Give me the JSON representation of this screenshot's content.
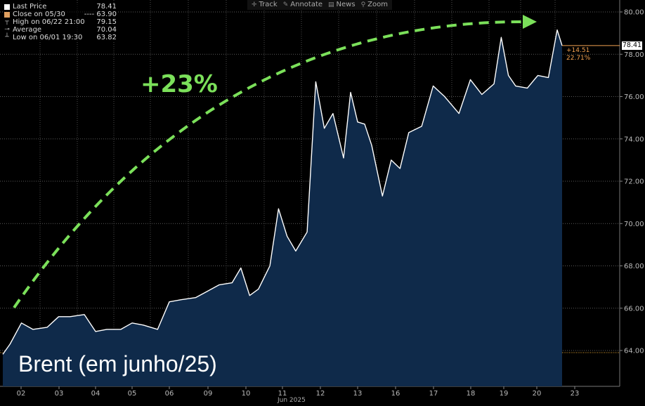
{
  "toolbar": {
    "items": [
      {
        "icon": "crosshair-icon",
        "label": "Track"
      },
      {
        "icon": "pencil-icon",
        "label": "Annotate"
      },
      {
        "icon": "news-icon",
        "label": "News"
      },
      {
        "icon": "zoom-icon",
        "label": "Zoom"
      }
    ]
  },
  "legend": {
    "rows": [
      {
        "label": "Last Price",
        "value": "78.41"
      },
      {
        "label": "Close on 05/30",
        "value": "---- 63.90"
      },
      {
        "label": "High on 06/22 21:00",
        "value": "79.15"
      },
      {
        "label": "Average",
        "value": "70.04"
      },
      {
        "label": "Low on 06/01 19:30",
        "value": "63.82"
      }
    ]
  },
  "annotations": {
    "percent_label": "+23%",
    "chart_title": "Brent (em junho/25)",
    "last_price_tag": "78.41",
    "change_abs": "+14.51",
    "change_pct": "22.71%"
  },
  "colors": {
    "background": "#000000",
    "line": "#ffffff",
    "area_fill": "#0f2a4a",
    "arrow": "#7be05a",
    "close_line": "#e0a030",
    "last_price_swatch": "#ffffff",
    "close_swatch": "#e0a060"
  },
  "chart_data": {
    "type": "area",
    "title": "Brent (em junho/25)",
    "xlabel": "Jun 2025",
    "ylabel": "",
    "x_tick_labels": [
      "02",
      "03",
      "04",
      "05",
      "06",
      "09",
      "10",
      "11",
      "12",
      "13",
      "16",
      "17",
      "18",
      "19",
      "20",
      "23"
    ],
    "y_tick_labels": [
      "64.00",
      "66.00",
      "68.00",
      "70.00",
      "72.00",
      "74.00",
      "76.00",
      "78.00",
      "80.00"
    ],
    "ylim": [
      63,
      80.3
    ],
    "close_reference": 63.9,
    "grid": true,
    "series": [
      {
        "name": "Last Price",
        "x": [
          "06/01 19:30",
          "02",
          "02",
          "02",
          "03",
          "03",
          "03",
          "04",
          "04",
          "04",
          "05",
          "05",
          "05",
          "06",
          "06",
          "06",
          "09",
          "09",
          "09",
          "10",
          "10",
          "10",
          "10",
          "11",
          "11",
          "11",
          "11",
          "12",
          "12",
          "12",
          "12",
          "13",
          "13",
          "13",
          "13",
          "13",
          "16",
          "16",
          "16",
          "16",
          "17",
          "17",
          "17",
          "18",
          "18",
          "18",
          "19",
          "19",
          "19",
          "19",
          "20",
          "20",
          "20",
          "06/22 21:00",
          "23"
        ],
        "values": [
          63.82,
          64.3,
          65.3,
          65.0,
          65.1,
          65.6,
          65.6,
          65.7,
          64.9,
          65.0,
          65.0,
          65.3,
          65.2,
          65.0,
          66.3,
          66.4,
          66.5,
          66.8,
          67.1,
          67.2,
          67.9,
          66.6,
          66.9,
          68.0,
          70.7,
          69.4,
          68.7,
          69.6,
          76.7,
          74.5,
          75.2,
          73.1,
          76.2,
          74.8,
          74.7,
          73.7,
          71.3,
          73.0,
          72.6,
          74.3,
          74.6,
          76.5,
          76.0,
          75.2,
          76.8,
          76.1,
          76.6,
          78.8,
          77.0,
          76.5,
          76.4,
          77.0,
          76.9,
          79.15,
          78.41
        ]
      }
    ]
  }
}
